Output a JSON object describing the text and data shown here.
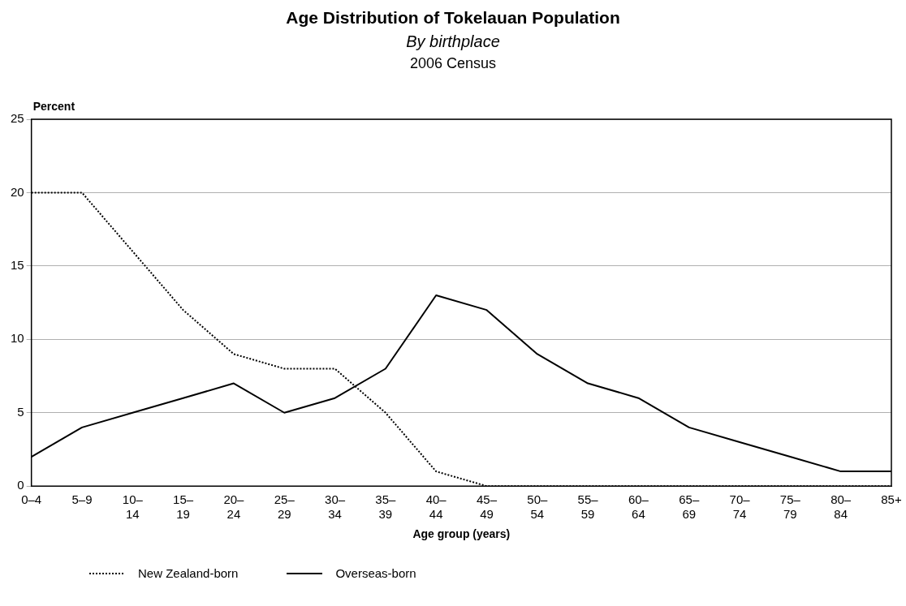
{
  "chart_data": {
    "type": "line",
    "title": "Age Distribution of Tokelauan Population",
    "subtitle": "By birthplace",
    "annotations": [
      "2006 Census"
    ],
    "xlabel": "Age group (years)",
    "ylabel": "Percent",
    "categories": [
      "0–4",
      "5–9",
      "10–\n14",
      "15–\n19",
      "20–\n24",
      "25–\n29",
      "30–\n34",
      "35–\n39",
      "40–\n44",
      "45–\n49",
      "50–\n54",
      "55–\n59",
      "60–\n64",
      "65–\n69",
      "70–\n74",
      "75–\n79",
      "80–\n84",
      "85+"
    ],
    "series": [
      {
        "name": "New Zealand-born",
        "color": "#000000",
        "line_style": "dotted",
        "values": [
          20,
          20,
          16,
          12,
          9,
          8,
          8,
          5,
          1,
          0,
          0,
          0,
          0,
          0,
          0,
          0,
          0,
          0
        ]
      },
      {
        "name": "Overseas-born",
        "color": "#000000",
        "line_style": "solid",
        "values": [
          2,
          4,
          5,
          6,
          7,
          5,
          6,
          8,
          13,
          12,
          9,
          7,
          6,
          4,
          3,
          2,
          1,
          1
        ]
      }
    ],
    "ylim": [
      0,
      25
    ],
    "yticks": [
      0,
      5,
      10,
      15,
      20,
      25
    ],
    "grid": "y",
    "legend": "bottom"
  }
}
